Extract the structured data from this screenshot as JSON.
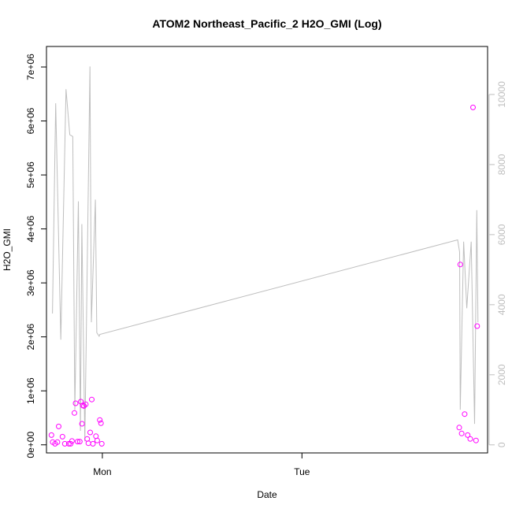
{
  "chart_data": {
    "type": "scatter",
    "title": "ATOM2 Northeast_Pacific_2 H2O_GMI (Log)",
    "xlabel": "Date",
    "ylabel": "H2O_GMI",
    "grid": false,
    "legend": "none",
    "x_axis": {
      "unit": "days",
      "xlim": [
        -0.28,
        1.93
      ],
      "ticks": [
        {
          "value": 0,
          "label": "Mon"
        },
        {
          "value": 1,
          "label": "Tue"
        }
      ]
    },
    "y_axis_left": {
      "ylim": [
        -150000,
        7380000
      ],
      "ticks": [
        {
          "value": 0,
          "label": "0e+00"
        },
        {
          "value": 1000000,
          "label": "1e+06"
        },
        {
          "value": 2000000,
          "label": "2e+06"
        },
        {
          "value": 3000000,
          "label": "3e+06"
        },
        {
          "value": 4000000,
          "label": "4e+06"
        },
        {
          "value": 5000000,
          "label": "5e+06"
        },
        {
          "value": 6000000,
          "label": "6e+06"
        },
        {
          "value": 7000000,
          "label": "7e+06"
        }
      ]
    },
    "y_axis_right": {
      "ylim": [
        -230,
        11370
      ],
      "color": "#bebebe",
      "ticks": [
        {
          "value": 0,
          "label": "0"
        },
        {
          "value": 2000,
          "label": "2000"
        },
        {
          "value": 4000,
          "label": "4000"
        },
        {
          "value": 6000,
          "label": "6000"
        },
        {
          "value": 8000,
          "label": "8000"
        },
        {
          "value": 10000,
          "label": "10000"
        }
      ]
    },
    "series": [
      {
        "kind": "points",
        "axis": "left",
        "color": "#ff00ff",
        "marker": "open-circle",
        "x": [
          -0.255,
          -0.249,
          -0.237,
          -0.225,
          -0.219,
          -0.2,
          -0.188,
          -0.168,
          -0.159,
          -0.152,
          -0.14,
          -0.134,
          -0.124,
          -0.113,
          -0.108,
          -0.102,
          -0.098,
          -0.092,
          -0.083,
          -0.076,
          -0.07,
          -0.061,
          -0.053,
          -0.047,
          -0.032,
          -0.026,
          -0.013,
          -0.007,
          -0.003,
          1.788,
          1.793,
          1.8,
          1.815,
          1.83,
          1.843,
          1.857,
          1.872,
          1.878
        ],
        "y": [
          180000,
          50000,
          20000,
          50000,
          340000,
          150000,
          20000,
          20000,
          20000,
          70000,
          590000,
          770000,
          60000,
          60000,
          800000,
          390000,
          730000,
          720000,
          750000,
          110000,
          30000,
          230000,
          840000,
          20000,
          160000,
          80000,
          460000,
          400000,
          20000,
          320000,
          3340000,
          210000,
          570000,
          180000,
          110000,
          6250000,
          80000,
          2200000
        ]
      },
      {
        "kind": "line",
        "axis": "right",
        "color": "#bebebe",
        "x": [
          -0.25,
          -0.234,
          -0.208,
          -0.182,
          -0.163,
          -0.148,
          -0.138,
          -0.12,
          -0.11,
          -0.103,
          -0.088,
          -0.062,
          -0.055,
          -0.035,
          -0.028,
          -0.016,
          -0.013,
          1.78,
          1.79,
          1.793,
          1.81,
          1.826,
          1.848,
          1.865,
          1.876,
          1.882
        ],
        "y": [
          3750,
          9750,
          3000,
          10150,
          8850,
          8800,
          1000,
          6950,
          400,
          6300,
          100,
          10800,
          3500,
          7000,
          3200,
          3100,
          3150,
          5850,
          5500,
          1000,
          5800,
          3900,
          5800,
          600,
          6700,
          3500
        ]
      }
    ]
  }
}
